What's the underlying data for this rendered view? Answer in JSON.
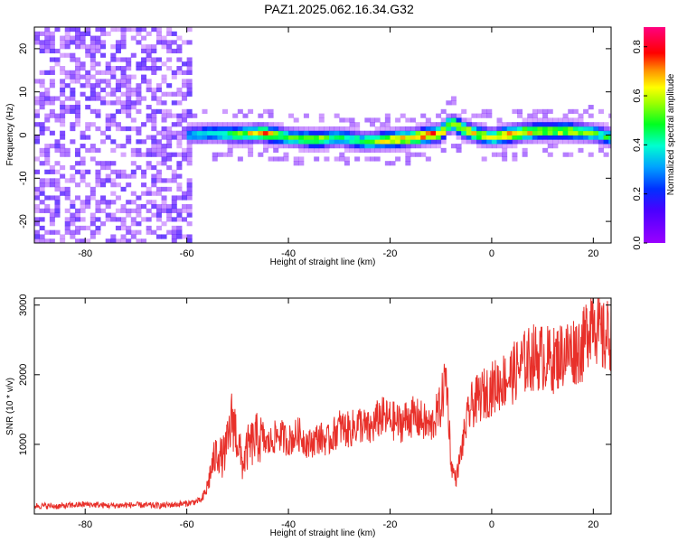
{
  "title": "PAZ1.2025.062.16.34.G32",
  "chart_data": [
    {
      "type": "heatmap",
      "xlabel": "Height of straight line (km)",
      "ylabel": "Frequency (Hz)",
      "xlim": [
        -90,
        23.5
      ],
      "ylim": [
        -25,
        25
      ],
      "xticks": [
        -80,
        -60,
        -40,
        -20,
        0,
        20
      ],
      "yticks": [
        -20,
        -10,
        0,
        10,
        20
      ],
      "colorbar": {
        "label": "Normalized spectral amplitude",
        "range": [
          0.0,
          0.88
        ],
        "ticks": [
          0.0,
          0.2,
          0.4,
          0.6,
          0.8
        ],
        "colormap": "rainbow (purple-blue-cyan-green-yellow-orange-red-magenta)"
      },
      "noise_region": {
        "x": [
          -90,
          -59
        ],
        "y": [
          -25,
          25
        ],
        "amplitude_range": [
          0.0,
          0.15
        ]
      },
      "signal_ridge": {
        "x": [
          -60,
          -55,
          -50,
          -45,
          -40,
          -35,
          -30,
          -25,
          -20,
          -15,
          -10,
          -8,
          -5,
          -2,
          0,
          5,
          10,
          15,
          20,
          23.5
        ],
        "frequency": [
          0.0,
          0.5,
          0.2,
          0.5,
          -0.5,
          -1.0,
          -0.5,
          -1.5,
          -1.0,
          -0.5,
          0.5,
          3.0,
          1.0,
          0.0,
          -0.5,
          0.5,
          1.0,
          1.0,
          0.5,
          -0.5
        ],
        "peak_amplitude": [
          0.35,
          0.45,
          0.6,
          0.8,
          0.55,
          0.7,
          0.5,
          0.6,
          0.75,
          0.8,
          0.85,
          0.6,
          0.75,
          0.7,
          0.65,
          0.8,
          0.65,
          0.7,
          0.6,
          0.5
        ]
      }
    },
    {
      "type": "line",
      "xlabel": "Height of straight line (km)",
      "ylabel": "SNR (10 * v/v)",
      "xlim": [
        -90,
        23.5
      ],
      "ylim": [
        0,
        3100
      ],
      "xticks": [
        -80,
        -60,
        -40,
        -20,
        0,
        20
      ],
      "yticks": [
        1000,
        2000,
        3000
      ],
      "color": "#e8302a",
      "x": [
        -90,
        -85,
        -80,
        -75,
        -70,
        -65,
        -60,
        -57,
        -56,
        -55,
        -54,
        -53,
        -52,
        -51,
        -50,
        -49,
        -48,
        -46,
        -44,
        -42,
        -40,
        -38,
        -36,
        -34,
        -32,
        -30,
        -28,
        -26,
        -24,
        -22,
        -20,
        -18,
        -16,
        -14,
        -12,
        -10,
        -9,
        -8.5,
        -8,
        -7,
        -6,
        -5,
        -4,
        -2,
        0,
        2,
        4,
        6,
        8,
        10,
        12,
        14,
        16,
        18,
        19,
        20,
        21,
        22,
        23.5
      ],
      "y": [
        120,
        110,
        140,
        120,
        130,
        120,
        150,
        200,
        380,
        700,
        900,
        800,
        1000,
        1400,
        1050,
        700,
        950,
        1100,
        1000,
        1150,
        1050,
        1150,
        1000,
        1100,
        1050,
        1250,
        1200,
        1300,
        1200,
        1400,
        1350,
        1300,
        1400,
        1350,
        1250,
        1550,
        2000,
        1500,
        700,
        500,
        900,
        1300,
        1550,
        1700,
        1800,
        1900,
        2000,
        2150,
        2250,
        2250,
        2200,
        2300,
        2350,
        2400,
        2700,
        2950,
        2600,
        2500,
        2600
      ]
    }
  ]
}
